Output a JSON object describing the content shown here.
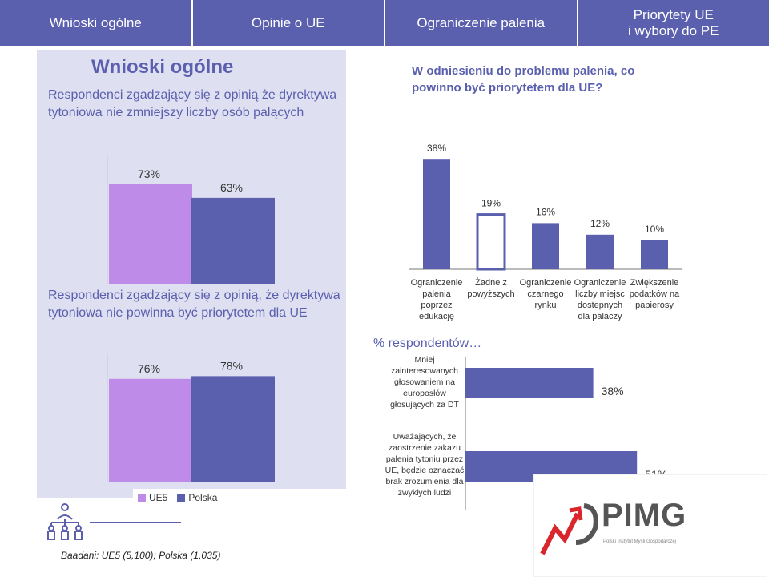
{
  "tabs": [
    "Wnioski ogólne",
    "Opinie o UE",
    "Ograniczenie palenia",
    "Priorytety UE\ni wybory do PE"
  ],
  "left": {
    "title": "Wnioski ogólne",
    "q1": "Respondenci zgadzający się z opinią że dyrektywa tytoniowa nie zmniejszy liczby osób palących",
    "q2": "Respondenci zgadzający się z opinią,  że dyrektywa tytoniowa nie powinna być priorytetem dla UE"
  },
  "legend": [
    {
      "label": "UE5",
      "color": "#bf8be8"
    },
    {
      "label": "Polska",
      "color": "#5a5fae"
    }
  ],
  "right": {
    "title": "W odniesieniu do problemu palenia, co powinno być priorytetem dla UE?",
    "pct_title": "% respondentów…"
  },
  "footer_note": "Baadani: UE5 (5,100); Polska (1,035)",
  "logo": {
    "text": "PIMG",
    "subtitle": "Polski Instytut Myśli Gospodarczej"
  },
  "colors": {
    "accent": "#5a5fae",
    "light": "#bf8be8",
    "panel": "#dedff0"
  },
  "chart_data": [
    {
      "type": "bar",
      "categories": [
        "UE5",
        "Polska"
      ],
      "values": [
        73,
        63
      ],
      "labels": [
        "73%",
        "63%"
      ],
      "colors": [
        "#bf8be8",
        "#5a5fae"
      ],
      "ylim": [
        0,
        100
      ]
    },
    {
      "type": "bar",
      "categories": [
        "UE5",
        "Polska"
      ],
      "values": [
        76,
        78
      ],
      "labels": [
        "76%",
        "78%"
      ],
      "colors": [
        "#bf8be8",
        "#5a5fae"
      ],
      "ylim": [
        0,
        100
      ]
    },
    {
      "type": "bar",
      "categories": [
        "Ograniczenie\npalenia\npoprzez\nedukację",
        "Żadne z\npowyższych",
        "Ograniczenie\nczarnego\nrynku",
        "Ograniczenie\nliczby miejsc\ndostepnych\ndla palaczy",
        "Zwiększenie\npodatków na\npapierosy"
      ],
      "values": [
        38,
        19,
        16,
        12,
        10
      ],
      "labels": [
        "38%",
        "19%",
        "16%",
        "12%",
        "10%"
      ],
      "outlined": [
        false,
        true,
        false,
        false,
        false
      ],
      "ylim": [
        0,
        40
      ]
    },
    {
      "type": "bar",
      "orientation": "horizontal",
      "categories": [
        "Mniej\nzainteresowanych\ngłosowaniem na\neuroposłów\ngłosujących za DT",
        "Uważających, że\nzaostrzenie zakazu\npalenia tytoniu przez\nUE, będzie oznaczać\nbrak zrozumienia dla\nzwykłych ludzi"
      ],
      "values": [
        38,
        51
      ],
      "labels": [
        "38%",
        "51%"
      ],
      "xlim": [
        0,
        60
      ]
    }
  ]
}
